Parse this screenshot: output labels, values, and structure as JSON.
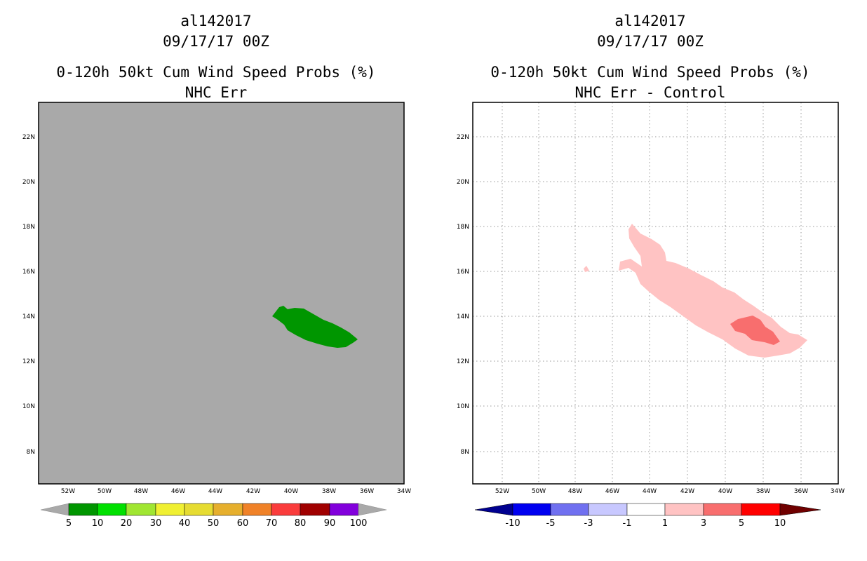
{
  "left_panel": {
    "storm_id": "al142017",
    "datetime": "09/17/17 00Z",
    "title": "0-120h 50kt Cum Wind Speed Probs (%)",
    "subtitle": "NHC Err",
    "background_color": "#a9a9a9",
    "colorbar": {
      "labels": [
        "5",
        "10",
        "20",
        "30",
        "40",
        "50",
        "60",
        "70",
        "80",
        "90",
        "100"
      ],
      "colors": [
        "#009600",
        "#00e000",
        "#a0e632",
        "#f0f032",
        "#e6dc32",
        "#e6af2d",
        "#f08228",
        "#fa3c3c",
        "#a00000",
        "#8200dc"
      ],
      "end_color": "#a9a9a9"
    }
  },
  "right_panel": {
    "storm_id": "al142017",
    "datetime": "09/17/17 00Z",
    "title": "0-120h 50kt Cum Wind Speed Probs (%)",
    "subtitle": "NHC Err - Control",
    "background_color": "#ffffff",
    "colorbar": {
      "labels": [
        "-10",
        "-5",
        "-3",
        "-1",
        "1",
        "3",
        "5",
        "10"
      ],
      "colors": [
        "#0000f0",
        "#7070f0",
        "#c8c8ff",
        "#ffffff",
        "#ffc3c3",
        "#f86e6e",
        "#ff0000"
      ],
      "low_end_color": "#000090",
      "high_end_color": "#700000"
    }
  },
  "map_axes": {
    "lon_labels": [
      "52W",
      "50W",
      "48W",
      "46W",
      "44W",
      "42W",
      "40W",
      "38W",
      "36W",
      "34W"
    ],
    "lat_labels": [
      "22N",
      "20N",
      "18N",
      "16N",
      "14N",
      "12N",
      "10N",
      "8N"
    ]
  }
}
